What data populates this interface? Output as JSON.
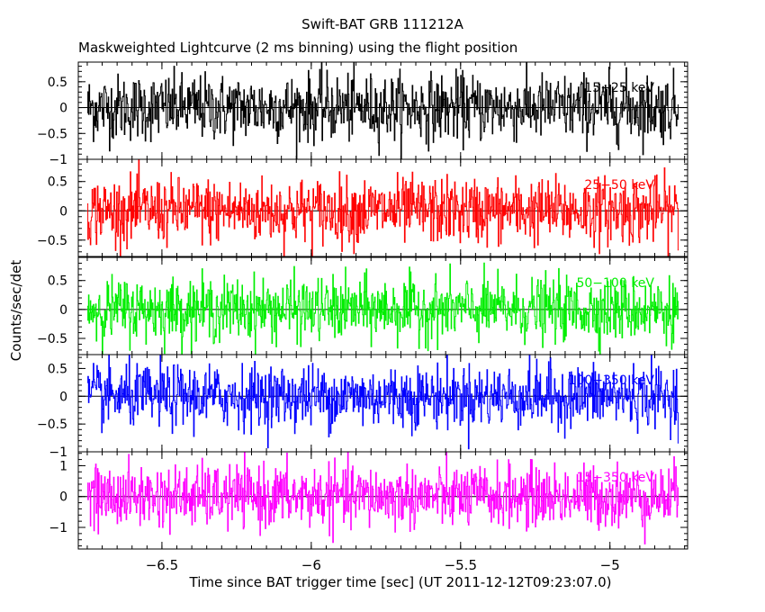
{
  "chart_data": {
    "type": "line",
    "title": "Swift-BAT GRB 111212A",
    "subtitle": "Maskweighted Lightcurve (2 ms binning) using the flight position",
    "xlabel": "Time since BAT trigger time [sec] (UT 2011-12-12T09:23:07.0)",
    "ylabel": "Counts/sec/det",
    "xlim": [
      -6.78,
      -4.74
    ],
    "x_ticks": [
      -6.5,
      -6,
      -5.5,
      -5
    ],
    "x_tick_labels": [
      "−6.5",
      "−6",
      "−5.5",
      "−5"
    ],
    "x_start": -6.75,
    "x_end": -4.77,
    "bin_width": 0.002,
    "panels": [
      {
        "name": "15-25 keV",
        "label": "15−25 keV",
        "color": "#000000",
        "ylim": [
          -1.0,
          0.88
        ],
        "y_ticks": [
          -1,
          -0.5,
          0,
          0.5
        ],
        "y_tick_labels": [
          "−1",
          "−0.5",
          "0",
          "0.5"
        ],
        "amplitude": 0.32
      },
      {
        "name": "25-50 keV",
        "label": "25−50 keV",
        "color": "#ff0000",
        "ylim": [
          -0.78,
          0.88
        ],
        "y_ticks": [
          -0.5,
          0,
          0.5
        ],
        "y_tick_labels": [
          "−0.5",
          "0",
          "0.5"
        ],
        "amplitude": 0.28
      },
      {
        "name": "50-100 keV",
        "label": "50−100 keV",
        "color": "#00ee00",
        "ylim": [
          -0.78,
          0.9
        ],
        "y_ticks": [
          -0.5,
          0,
          0.5
        ],
        "y_tick_labels": [
          "−0.5",
          "0",
          "0.5"
        ],
        "amplitude": 0.27
      },
      {
        "name": "100-350 keV",
        "label": "100−350 keV",
        "color": "#0000ff",
        "ylim": [
          -1.0,
          0.75
        ],
        "y_ticks": [
          -1,
          -0.5,
          0,
          0.5
        ],
        "y_tick_labels": [
          "−1",
          "−0.5",
          "0",
          "0.5"
        ],
        "amplitude": 0.28
      },
      {
        "name": "15-350 keV",
        "label": "15−350 keV",
        "color": "#ff00ff",
        "ylim": [
          -1.7,
          1.45
        ],
        "y_ticks": [
          -1,
          0,
          1
        ],
        "y_tick_labels": [
          "−1",
          "0",
          "1"
        ],
        "amplitude": 0.5
      }
    ]
  }
}
